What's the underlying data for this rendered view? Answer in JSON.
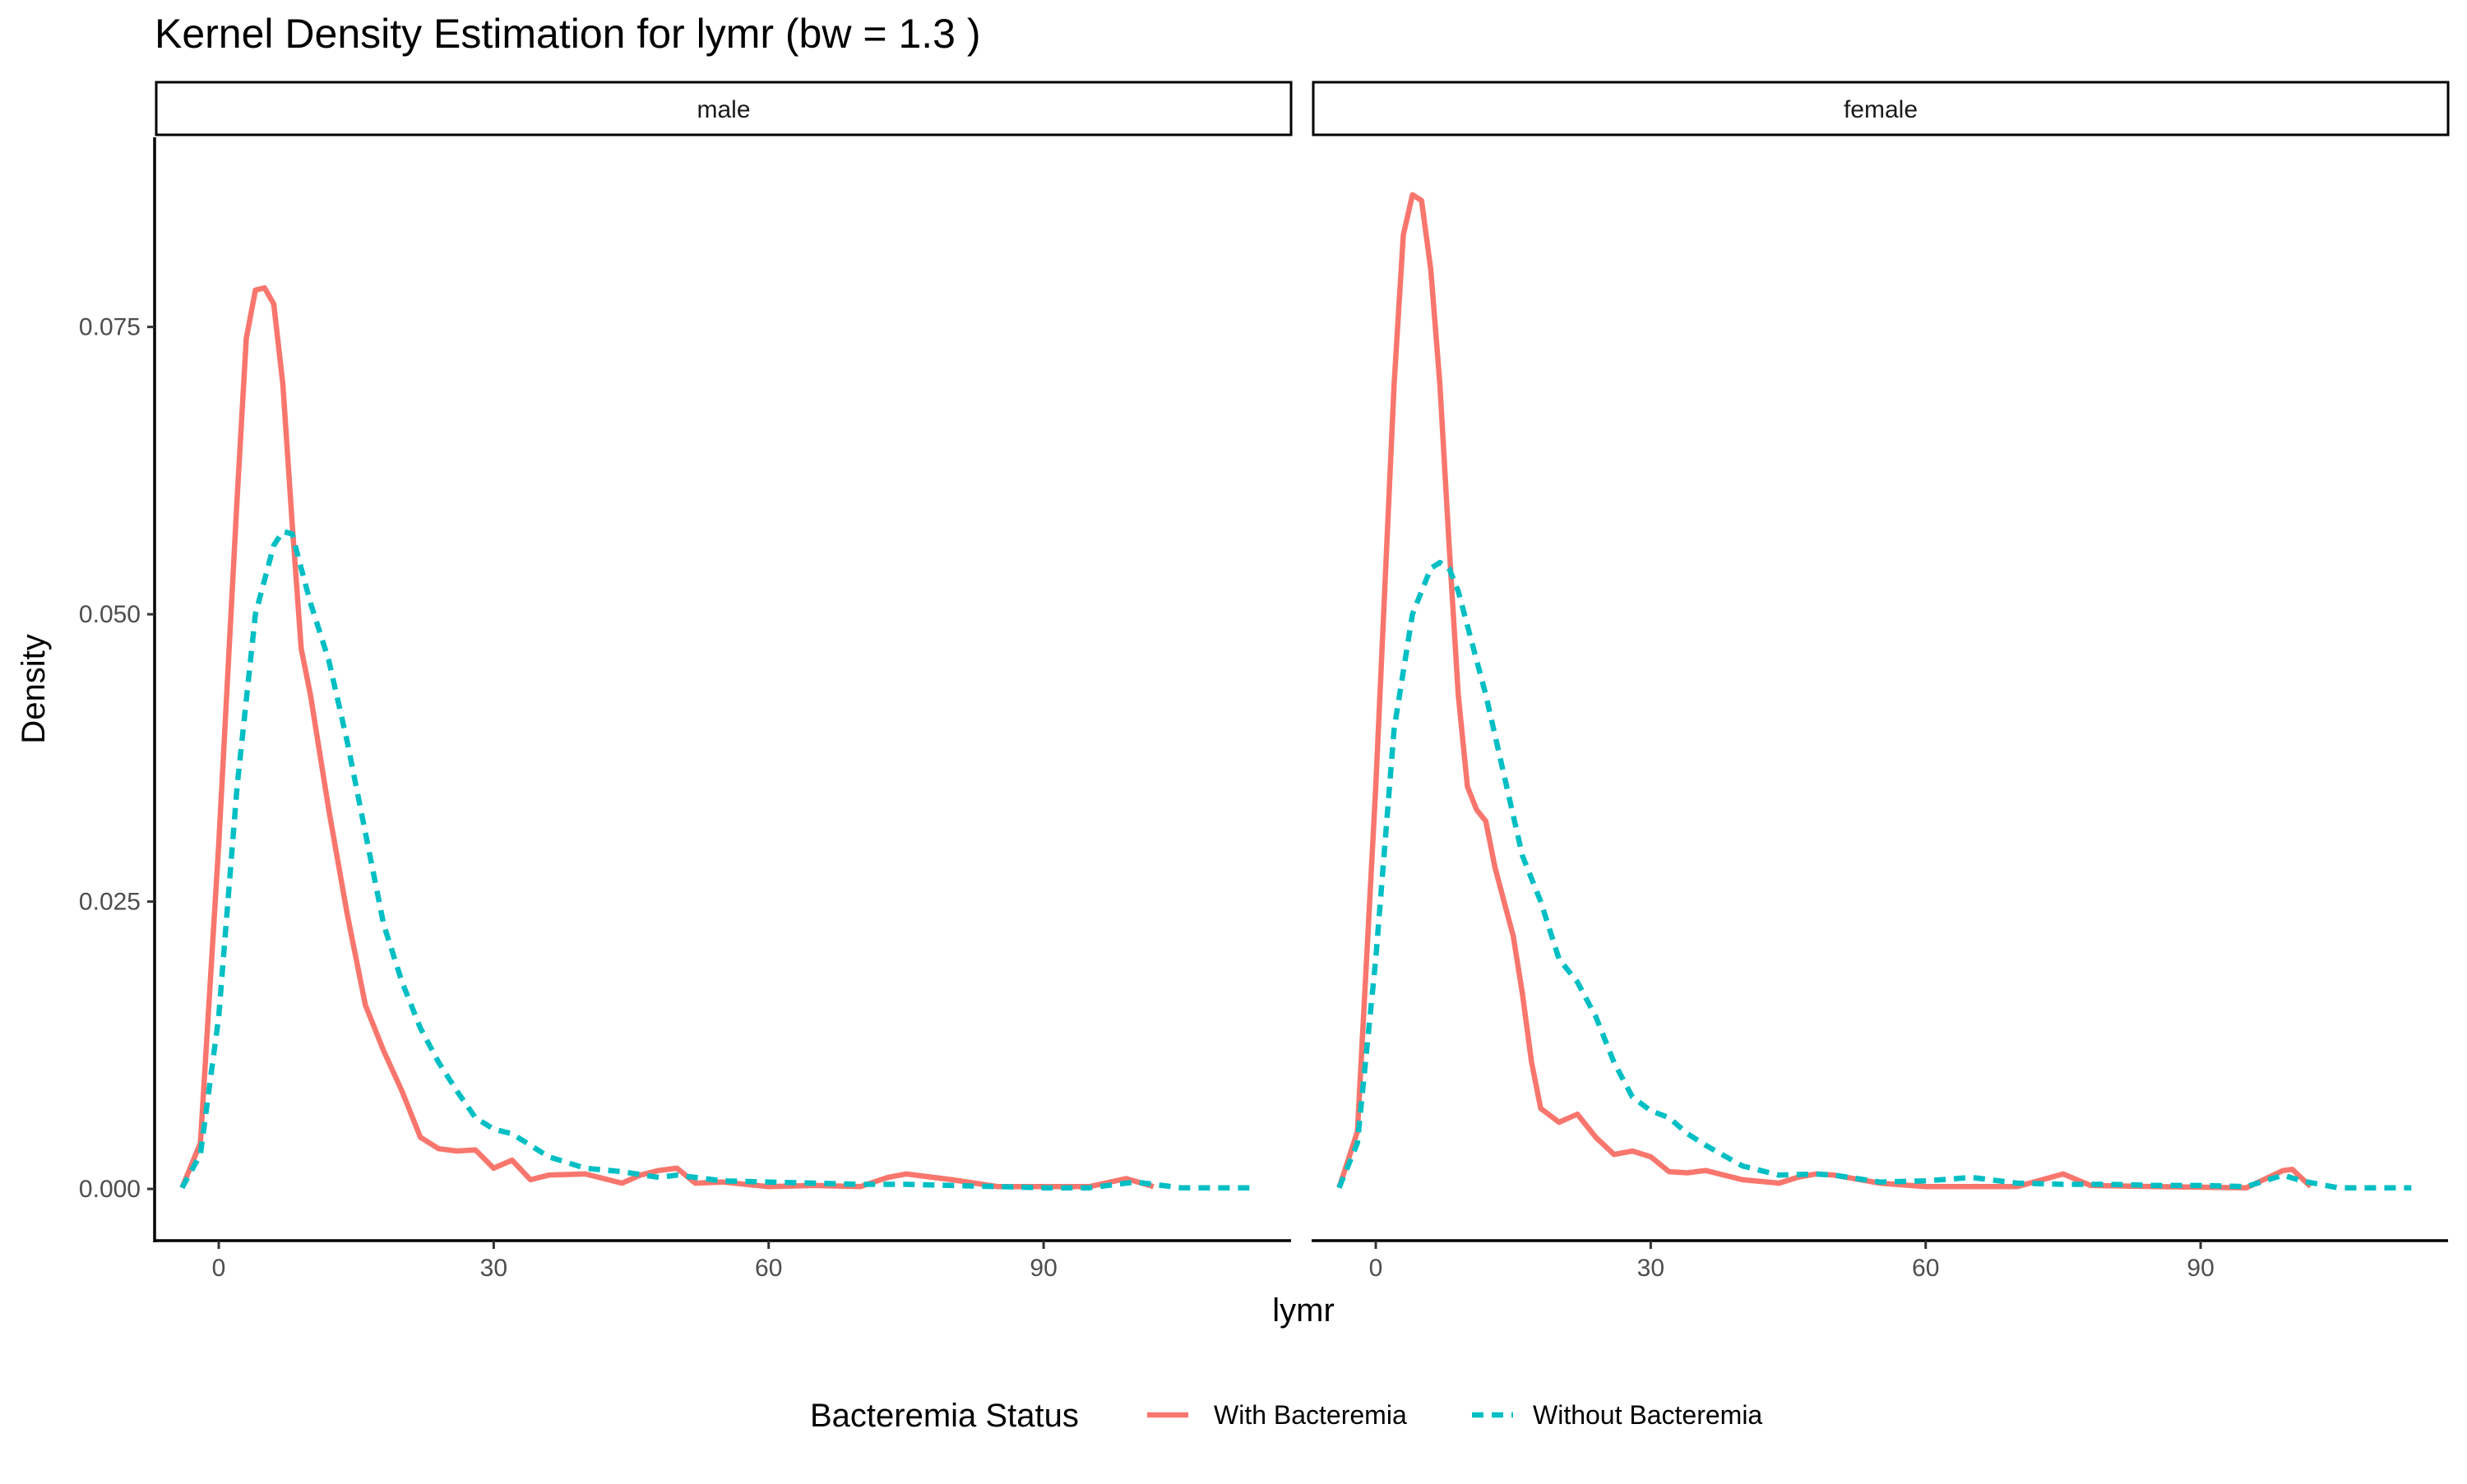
{
  "chart_data": {
    "type": "line",
    "title": "Kernel Density Estimation for lymr (bw = 1.3 )",
    "xlabel": "lymr",
    "ylabel": "Density",
    "xlim": [
      -7,
      117
    ],
    "ylim": [
      -0.0045,
      0.0915
    ],
    "x_ticks": [
      0,
      30,
      60,
      90
    ],
    "x_tick_labels": [
      "0",
      "30",
      "60",
      "90"
    ],
    "y_ticks": [
      0,
      0.025,
      0.05,
      0.075
    ],
    "y_tick_labels": [
      "0.000",
      "0.025",
      "0.050",
      "0.075"
    ],
    "grid": false,
    "legend": {
      "title": "Bacteremia Status",
      "position": "bottom",
      "entries": [
        {
          "label": "With Bacteremia",
          "color": "#F8766D",
          "linetype": "solid"
        },
        {
          "label": "Without Bacteremia",
          "color": "#00BFC4",
          "linetype": "dashed"
        }
      ]
    },
    "panels": [
      {
        "strip": "male",
        "series": [
          {
            "name": "With Bacteremia",
            "color": "#F8766D",
            "dash": false,
            "x": [
              -4,
              -2,
              0,
              2,
              3,
              4,
              5,
              6,
              7,
              8,
              9,
              10,
              12,
              14,
              16,
              18,
              20,
              22,
              24,
              26,
              28,
              30,
              32,
              34,
              36,
              40,
              44,
              46,
              48,
              50,
              52,
              55,
              60,
              65,
              70,
              73,
              75,
              80,
              85,
              90,
              95,
              99,
              102
            ],
            "y": [
              0.0001,
              0.004,
              0.03,
              0.06,
              0.074,
              0.0782,
              0.0784,
              0.077,
              0.07,
              0.058,
              0.047,
              0.043,
              0.033,
              0.024,
              0.016,
              0.012,
              0.0085,
              0.0045,
              0.0035,
              0.0033,
              0.0034,
              0.0018,
              0.0025,
              0.0008,
              0.0012,
              0.0013,
              0.0005,
              0.0012,
              0.0016,
              0.0018,
              0.0005,
              0.0006,
              0.0002,
              0.0003,
              0.0002,
              0.001,
              0.0013,
              0.0008,
              0.0002,
              0.0002,
              0.0002,
              0.0009,
              0.0002
            ]
          },
          {
            "name": "Without Bacteremia",
            "color": "#00BFC4",
            "dash": true,
            "x": [
              -4,
              -2,
              0,
              2,
              4,
              6,
              7,
              8,
              9,
              10,
              12,
              14,
              16,
              18,
              20,
              22,
              24,
              26,
              28,
              30,
              32,
              34,
              36,
              40,
              44,
              48,
              50,
              55,
              60,
              65,
              70,
              75,
              80,
              85,
              90,
              95,
              100,
              105,
              113
            ],
            "y": [
              0.0001,
              0.003,
              0.015,
              0.035,
              0.05,
              0.056,
              0.0572,
              0.057,
              0.054,
              0.051,
              0.046,
              0.039,
              0.031,
              0.023,
              0.018,
              0.014,
              0.011,
              0.0085,
              0.0062,
              0.0052,
              0.0048,
              0.0038,
              0.0028,
              0.0018,
              0.0015,
              0.001,
              0.0012,
              0.0007,
              0.0006,
              0.0005,
              0.0004,
              0.0004,
              0.0003,
              0.0002,
              0.0001,
              0.0001,
              0.0006,
              0.0001,
              0.0001
            ]
          }
        ]
      },
      {
        "strip": "female",
        "series": [
          {
            "name": "With Bacteremia",
            "color": "#F8766D",
            "dash": false,
            "x": [
              -4,
              -2,
              0,
              2,
              3,
              4,
              5,
              6,
              7,
              8,
              9,
              10,
              11,
              12,
              13,
              14,
              15,
              16,
              17,
              18,
              20,
              22,
              24,
              26,
              28,
              30,
              32,
              34,
              36,
              40,
              44,
              46,
              48,
              50,
              55,
              60,
              65,
              70,
              75,
              78,
              85,
              95,
              99,
              100,
              102
            ],
            "y": [
              0.0001,
              0.005,
              0.035,
              0.07,
              0.083,
              0.0865,
              0.086,
              0.08,
              0.07,
              0.056,
              0.043,
              0.035,
              0.033,
              0.032,
              0.028,
              0.025,
              0.022,
              0.017,
              0.011,
              0.007,
              0.0058,
              0.0065,
              0.0045,
              0.003,
              0.0033,
              0.0028,
              0.0015,
              0.0014,
              0.0016,
              0.0008,
              0.0005,
              0.001,
              0.0013,
              0.0012,
              0.0005,
              0.0002,
              0.0002,
              0.0002,
              0.0013,
              0.0003,
              0.0002,
              0.0001,
              0.0016,
              0.0017,
              0.0002
            ]
          },
          {
            "name": "Without Bacteremia",
            "color": "#00BFC4",
            "dash": true,
            "x": [
              -4,
              -2,
              0,
              2,
              4,
              5,
              6,
              7,
              8,
              9,
              10,
              12,
              14,
              16,
              18,
              20,
              22,
              24,
              26,
              28,
              30,
              32,
              34,
              36,
              40,
              44,
              48,
              50,
              55,
              60,
              65,
              70,
              75,
              80,
              85,
              90,
              95,
              99,
              101,
              105,
              113
            ],
            "y": [
              0.0001,
              0.004,
              0.02,
              0.04,
              0.05,
              0.052,
              0.054,
              0.0545,
              0.054,
              0.052,
              0.049,
              0.043,
              0.036,
              0.029,
              0.025,
              0.02,
              0.018,
              0.015,
              0.011,
              0.008,
              0.0068,
              0.0062,
              0.0048,
              0.0038,
              0.002,
              0.0012,
              0.0013,
              0.0012,
              0.0006,
              0.0007,
              0.001,
              0.0005,
              0.0004,
              0.0004,
              0.0003,
              0.0003,
              0.0002,
              0.0012,
              0.0007,
              0.0001,
              0.0001
            ]
          }
        ]
      }
    ]
  }
}
